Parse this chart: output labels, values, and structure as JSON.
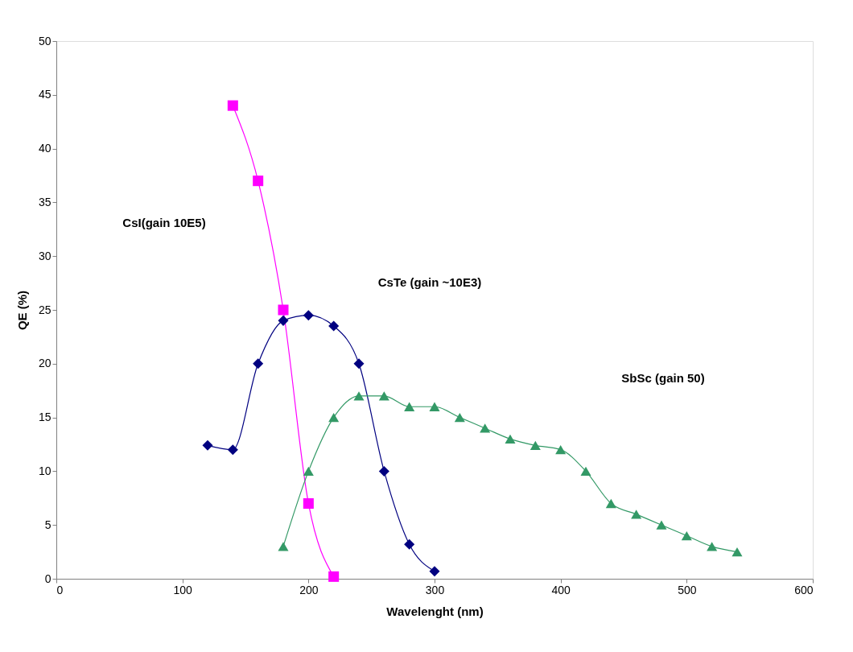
{
  "chart_data": {
    "type": "line",
    "xlabel": "Wavelenght (nm)",
    "ylabel": "QE (%)",
    "xlim": [
      0,
      600
    ],
    "xticks": [
      0,
      100,
      200,
      300,
      400,
      500,
      600
    ],
    "ylim": [
      0,
      50
    ],
    "yticks": [
      0,
      5,
      10,
      15,
      20,
      25,
      30,
      35,
      40,
      45,
      50
    ],
    "grid": false,
    "series": [
      {
        "color": "#ff00ff",
        "marker": "square",
        "x": [
          140,
          160,
          180,
          200,
          220
        ],
        "values": [
          44,
          37,
          25,
          7,
          0.2
        ]
      },
      {
        "color": "#000080",
        "marker": "diamond",
        "x": [
          120,
          140,
          160,
          180,
          200,
          220,
          240,
          260,
          280,
          300
        ],
        "values": [
          12.4,
          12,
          20,
          24,
          24.5,
          23.5,
          20,
          10,
          3.2,
          0.7
        ]
      },
      {
        "color": "#339966",
        "marker": "triangle",
        "x": [
          180,
          200,
          220,
          240,
          260,
          280,
          300,
          320,
          340,
          360,
          380,
          400,
          420,
          440,
          460,
          480,
          500,
          520,
          540
        ],
        "values": [
          3,
          10,
          15,
          17,
          17,
          16,
          16,
          15,
          14,
          13,
          12.4,
          12,
          10,
          7,
          6,
          5,
          4,
          3,
          2.5
        ]
      }
    ],
    "annotations": [
      "CsI(gain 10E5)",
      "CsTe (gain ~10E3)",
      "SbSc (gain 50)"
    ]
  }
}
